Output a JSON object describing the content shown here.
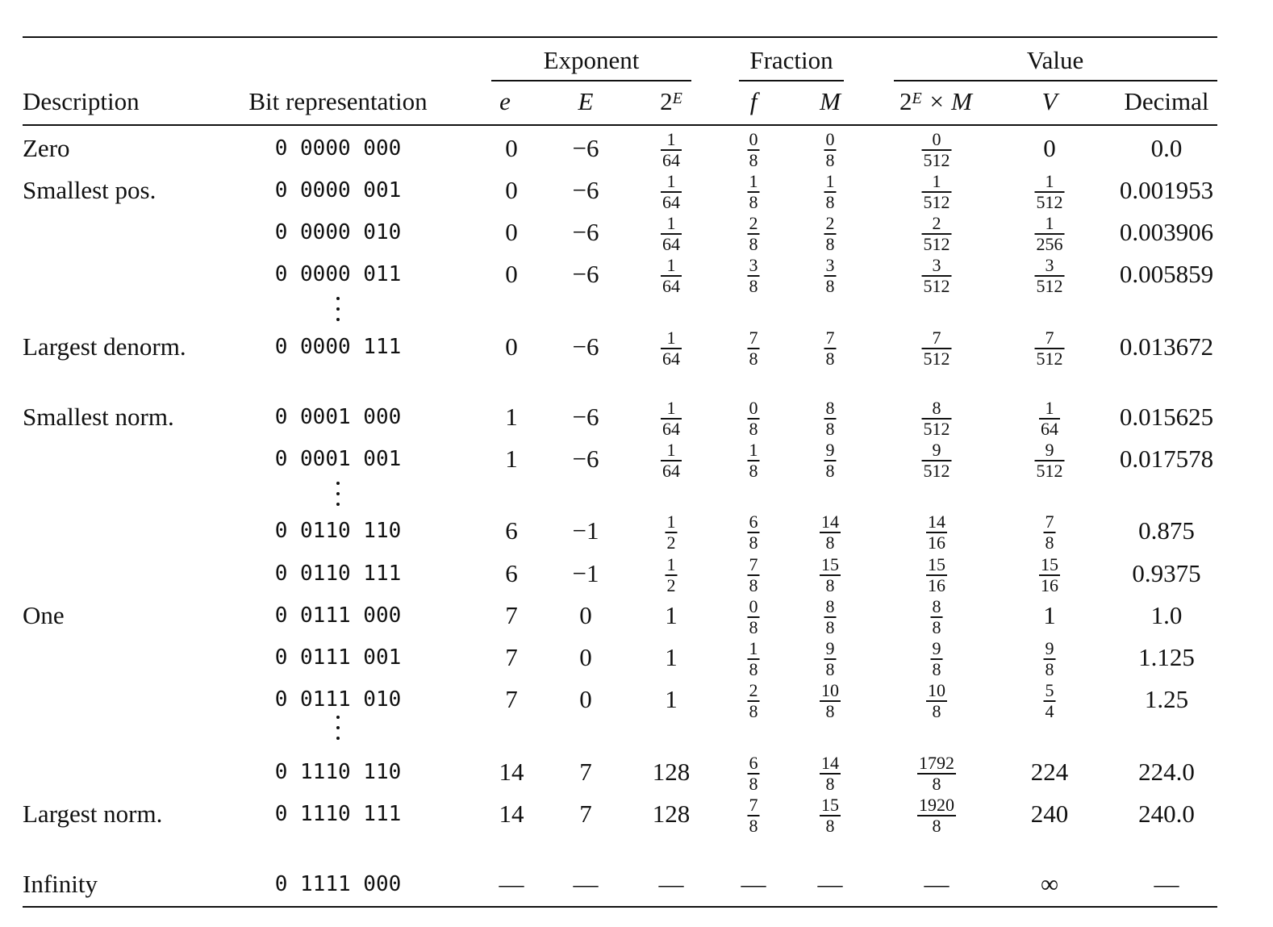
{
  "groups": [
    {
      "label": "Exponent",
      "key": "exponent"
    },
    {
      "label": "Fraction",
      "key": "fraction"
    },
    {
      "label": "Value",
      "key": "value"
    }
  ],
  "headers": {
    "description": "Description",
    "bits": "Bit representation",
    "e": "e",
    "E": "E",
    "twoE_base": "2",
    "twoE_sup": "E",
    "f": "f",
    "M": "M",
    "prod_base": "2",
    "prod_sup": "E",
    "prod_rest": " × M",
    "V": "V",
    "decimal": "Decimal"
  },
  "rows": [
    {
      "desc": "Zero",
      "bits": "0 0000 000",
      "e": "0",
      "E": "−6",
      "twoE": [
        "1",
        "64"
      ],
      "f": [
        "0",
        "8"
      ],
      "M": [
        "0",
        "8"
      ],
      "prod": [
        "0",
        "512"
      ],
      "V": "0",
      "dec": "0.0"
    },
    {
      "desc": "Smallest pos.",
      "bits": "0 0000 001",
      "e": "0",
      "E": "−6",
      "twoE": [
        "1",
        "64"
      ],
      "f": [
        "1",
        "8"
      ],
      "M": [
        "1",
        "8"
      ],
      "prod": [
        "1",
        "512"
      ],
      "V": [
        "1",
        "512"
      ],
      "dec": "0.001953"
    },
    {
      "desc": "",
      "bits": "0 0000 010",
      "e": "0",
      "E": "−6",
      "twoE": [
        "1",
        "64"
      ],
      "f": [
        "2",
        "8"
      ],
      "M": [
        "2",
        "8"
      ],
      "prod": [
        "2",
        "512"
      ],
      "V": [
        "1",
        "256"
      ],
      "dec": "0.003906"
    },
    {
      "desc": "",
      "bits": "0 0000 011",
      "e": "0",
      "E": "−6",
      "twoE": [
        "1",
        "64"
      ],
      "f": [
        "3",
        "8"
      ],
      "M": [
        "3",
        "8"
      ],
      "prod": [
        "3",
        "512"
      ],
      "V": [
        "3",
        "512"
      ],
      "dec": "0.005859"
    },
    {
      "desc": "Largest denorm.",
      "bits": "0 0000 111",
      "e": "0",
      "E": "−6",
      "twoE": [
        "1",
        "64"
      ],
      "f": [
        "7",
        "8"
      ],
      "M": [
        "7",
        "8"
      ],
      "prod": [
        "7",
        "512"
      ],
      "V": [
        "7",
        "512"
      ],
      "dec": "0.013672"
    },
    {
      "desc": "Smallest norm.",
      "bits": "0 0001 000",
      "e": "1",
      "E": "−6",
      "twoE": [
        "1",
        "64"
      ],
      "f": [
        "0",
        "8"
      ],
      "M": [
        "8",
        "8"
      ],
      "prod": [
        "8",
        "512"
      ],
      "V": [
        "1",
        "64"
      ],
      "dec": "0.015625"
    },
    {
      "desc": "",
      "bits": "0 0001 001",
      "e": "1",
      "E": "−6",
      "twoE": [
        "1",
        "64"
      ],
      "f": [
        "1",
        "8"
      ],
      "M": [
        "9",
        "8"
      ],
      "prod": [
        "9",
        "512"
      ],
      "V": [
        "9",
        "512"
      ],
      "dec": "0.017578"
    },
    {
      "desc": "",
      "bits": "0 0110 110",
      "e": "6",
      "E": "−1",
      "twoE": [
        "1",
        "2"
      ],
      "f": [
        "6",
        "8"
      ],
      "M": [
        "14",
        "8"
      ],
      "prod": [
        "14",
        "16"
      ],
      "V": [
        "7",
        "8"
      ],
      "dec": "0.875"
    },
    {
      "desc": "",
      "bits": "0 0110 111",
      "e": "6",
      "E": "−1",
      "twoE": [
        "1",
        "2"
      ],
      "f": [
        "7",
        "8"
      ],
      "M": [
        "15",
        "8"
      ],
      "prod": [
        "15",
        "16"
      ],
      "V": [
        "15",
        "16"
      ],
      "dec": "0.9375"
    },
    {
      "desc": "One",
      "bits": "0 0111 000",
      "e": "7",
      "E": "0",
      "twoE": "1",
      "f": [
        "0",
        "8"
      ],
      "M": [
        "8",
        "8"
      ],
      "prod": [
        "8",
        "8"
      ],
      "V": "1",
      "dec": "1.0"
    },
    {
      "desc": "",
      "bits": "0 0111 001",
      "e": "7",
      "E": "0",
      "twoE": "1",
      "f": [
        "1",
        "8"
      ],
      "M": [
        "9",
        "8"
      ],
      "prod": [
        "9",
        "8"
      ],
      "V": [
        "9",
        "8"
      ],
      "dec": "1.125"
    },
    {
      "desc": "",
      "bits": "0 0111 010",
      "e": "7",
      "E": "0",
      "twoE": "1",
      "f": [
        "2",
        "8"
      ],
      "M": [
        "10",
        "8"
      ],
      "prod": [
        "10",
        "8"
      ],
      "V": [
        "5",
        "4"
      ],
      "dec": "1.25"
    },
    {
      "desc": "",
      "bits": "0 1110 110",
      "e": "14",
      "E": "7",
      "twoE": "128",
      "f": [
        "6",
        "8"
      ],
      "M": [
        "14",
        "8"
      ],
      "prod": [
        "1792",
        "8"
      ],
      "V": "224",
      "dec": "224.0"
    },
    {
      "desc": "Largest norm.",
      "bits": "0 1110 111",
      "e": "14",
      "E": "7",
      "twoE": "128",
      "f": [
        "7",
        "8"
      ],
      "M": [
        "15",
        "8"
      ],
      "prod": [
        "1920",
        "8"
      ],
      "V": "240",
      "dec": "240.0"
    },
    {
      "desc": "Infinity",
      "bits": "0 1111 000",
      "e": "—",
      "E": "—",
      "twoE": "—",
      "f": "—",
      "M": "—",
      "prod": "—",
      "V": "∞",
      "dec": "—"
    }
  ]
}
